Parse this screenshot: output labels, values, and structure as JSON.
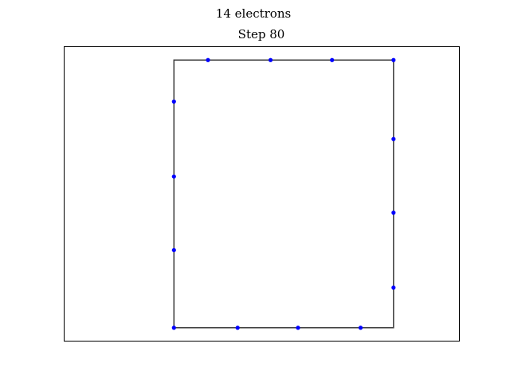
{
  "figure": {
    "suptitle": "14 electrons",
    "title": "Step 80"
  },
  "chart_data": {
    "type": "scatter",
    "title": "Step 80",
    "suptitle": "14 electrons",
    "xlabel": "",
    "ylabel": "",
    "xlim": [
      -0.5,
      1.3
    ],
    "ylim": [
      -0.05,
      1.05
    ],
    "axes_visible": false,
    "grid": false,
    "square": {
      "corners": [
        [
          0,
          0
        ],
        [
          1,
          0
        ],
        [
          1,
          1
        ],
        [
          0,
          1
        ]
      ],
      "color": "#3c3c3c"
    },
    "series": [
      {
        "marker_color": "#0000ff",
        "points": [
          {
            "x": 0.0,
            "y": 0.0
          },
          {
            "x": 0.29,
            "y": 0.0
          },
          {
            "x": 0.565,
            "y": 0.0
          },
          {
            "x": 0.85,
            "y": 0.0
          },
          {
            "x": 1.0,
            "y": 0.15
          },
          {
            "x": 1.0,
            "y": 0.43
          },
          {
            "x": 1.0,
            "y": 0.705
          },
          {
            "x": 1.0,
            "y": 1.0
          },
          {
            "x": 0.72,
            "y": 1.0
          },
          {
            "x": 0.44,
            "y": 1.0
          },
          {
            "x": 0.155,
            "y": 1.0
          },
          {
            "x": 0.0,
            "y": 0.845
          },
          {
            "x": 0.0,
            "y": 0.565
          },
          {
            "x": 0.0,
            "y": 0.29
          }
        ]
      }
    ]
  }
}
